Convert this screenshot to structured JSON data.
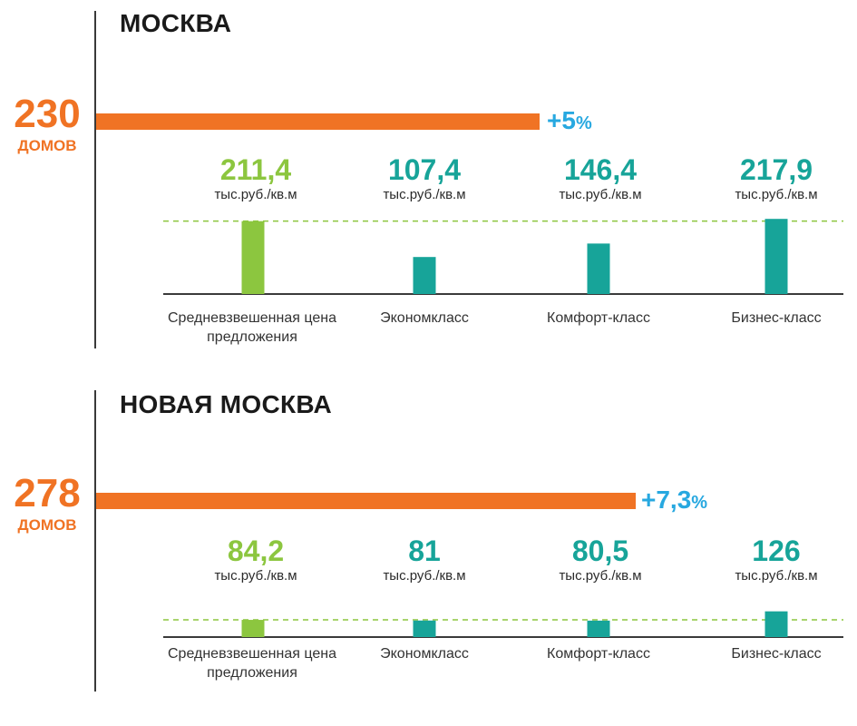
{
  "colors": {
    "orange": "#f07324",
    "blue": "#27a8e0",
    "green": "#8cc63f",
    "teal": "#17a499",
    "dashed_line": "#8cc63f",
    "axis": "#3a3a3a"
  },
  "unit_label": "тыс.руб./кв.м",
  "categories": [
    "Средневзвешенная цена предложения",
    "Экономкласс",
    "Комфорт-класс",
    "Бизнес-класс"
  ],
  "panels": [
    {
      "title": "МОСКВА",
      "houses_count": "230",
      "houses_label": "ДОМОВ",
      "growth": "+5",
      "growth_pct": "%",
      "value_labels": [
        "211,4",
        "107,4",
        "146,4",
        "217,9"
      ]
    },
    {
      "title": "НОВАЯ МОСКВА",
      "houses_count": "278",
      "houses_label": "ДОМОВ",
      "growth": "+7,3",
      "growth_pct": "%",
      "value_labels": [
        "84,2",
        "81",
        "80,5",
        "126"
      ]
    }
  ],
  "chart_data": [
    {
      "type": "bar",
      "title": "МОСКВА",
      "categories": [
        "Средневзвешенная цена предложения",
        "Экономкласс",
        "Комфорт-класс",
        "Бизнес-класс"
      ],
      "values": [
        211.4,
        107.4,
        146.4,
        217.9
      ],
      "unit": "тыс.руб./кв.м",
      "reference_line": 211.4,
      "houses": 230,
      "growth_percent": 5
    },
    {
      "type": "bar",
      "title": "НОВАЯ МОСКВА",
      "categories": [
        "Средневзвешенная цена предложения",
        "Экономкласс",
        "Комфорт-класс",
        "Бизнес-класс"
      ],
      "values": [
        84.2,
        81,
        80.5,
        126
      ],
      "unit": "тыс.руб./кв.м",
      "reference_line": 84.2,
      "houses": 278,
      "growth_percent": 7.3
    }
  ]
}
